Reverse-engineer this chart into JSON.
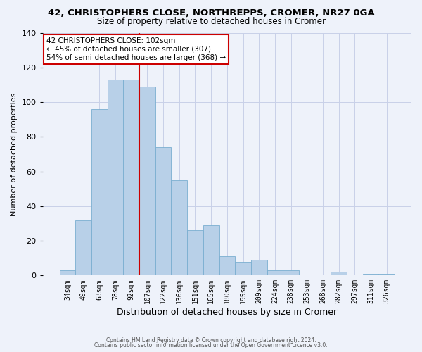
{
  "title": "42, CHRISTOPHERS CLOSE, NORTHREPPS, CROMER, NR27 0GA",
  "subtitle": "Size of property relative to detached houses in Cromer",
  "xlabel": "Distribution of detached houses by size in Cromer",
  "ylabel": "Number of detached properties",
  "categories": [
    "34sqm",
    "49sqm",
    "63sqm",
    "78sqm",
    "92sqm",
    "107sqm",
    "122sqm",
    "136sqm",
    "151sqm",
    "165sqm",
    "180sqm",
    "195sqm",
    "209sqm",
    "224sqm",
    "238sqm",
    "253sqm",
    "268sqm",
    "282sqm",
    "297sqm",
    "311sqm",
    "326sqm"
  ],
  "values": [
    3,
    32,
    96,
    113,
    113,
    109,
    74,
    55,
    26,
    29,
    11,
    8,
    9,
    3,
    3,
    0,
    0,
    2,
    0,
    1,
    1
  ],
  "bar_color": "#b8d0e8",
  "bar_edgecolor": "#7aaed0",
  "vline_color": "#cc0000",
  "annotation_title": "42 CHRISTOPHERS CLOSE: 102sqm",
  "annotation_line1": "← 45% of detached houses are smaller (307)",
  "annotation_line2": "54% of semi-detached houses are larger (368) →",
  "annotation_box_edgecolor": "#cc0000",
  "ylim": [
    0,
    140
  ],
  "yticks": [
    0,
    20,
    40,
    60,
    80,
    100,
    120,
    140
  ],
  "footer1": "Contains HM Land Registry data © Crown copyright and database right 2024.",
  "footer2": "Contains public sector information licensed under the Open Government Licence v3.0.",
  "background_color": "#eef2fa",
  "grid_color": "#c8d0e8"
}
